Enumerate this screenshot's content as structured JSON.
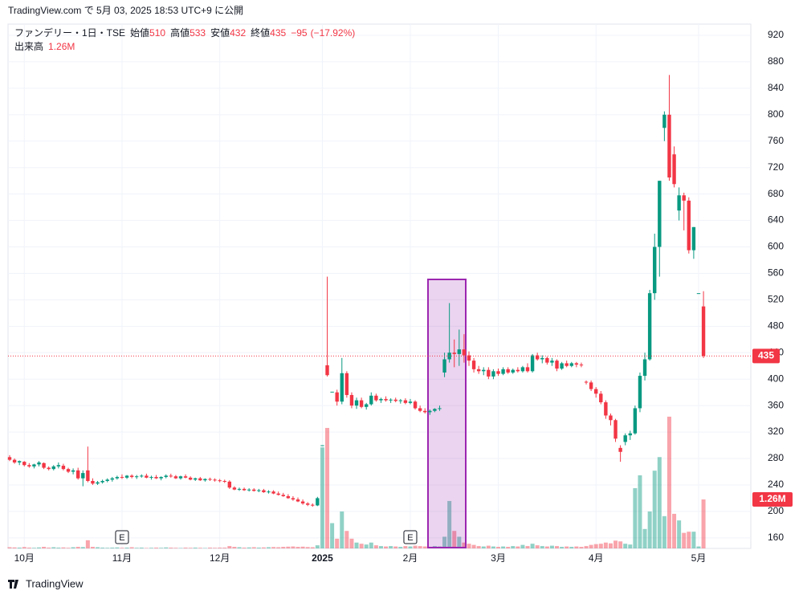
{
  "header": {
    "published": "TradingView.com で 5月 03, 2025 18:53 UTC+9 に公開"
  },
  "footer": {
    "logo": "TradingView"
  },
  "chart_data": {
    "type": "candlestick",
    "symbol": "ファンデリー・1日・TSE",
    "legend_labels": {
      "open": "始値",
      "high": "高値",
      "low": "安値",
      "close": "終値",
      "volume": "出来高"
    },
    "change": {
      "value": -95,
      "label": "−95"
    },
    "change_pct": {
      "value": -17.92,
      "label": "(−17.92%)"
    },
    "up_color": "#089981",
    "down_color": "#f23645",
    "ylim": [
      144,
      937
    ],
    "yticks": [
      160,
      200,
      240,
      280,
      320,
      360,
      400,
      440,
      480,
      520,
      560,
      600,
      640,
      680,
      720,
      760,
      800,
      840,
      880,
      920
    ],
    "xticks": [
      {
        "value": 3,
        "label": "10月"
      },
      {
        "value": 23,
        "label": "11月"
      },
      {
        "value": 43,
        "label": "12月"
      },
      {
        "value": 64,
        "label": "2025"
      },
      {
        "value": 82,
        "label": "2月"
      },
      {
        "value": 100,
        "label": "3月"
      },
      {
        "value": 120,
        "label": "4月"
      },
      {
        "value": 141,
        "label": "5月"
      }
    ],
    "events": [
      {
        "value": 23,
        "label": "E"
      },
      {
        "value": 82,
        "label": "E"
      }
    ],
    "candles": [
      [
        282,
        285,
        276,
        278
      ],
      [
        278,
        280,
        272,
        274
      ],
      [
        274,
        277,
        270,
        276
      ],
      [
        275,
        276,
        268,
        270
      ],
      [
        270,
        273,
        266,
        268
      ],
      [
        268,
        272,
        265,
        271
      ],
      [
        271,
        276,
        268,
        274
      ],
      [
        273,
        274,
        264,
        266
      ],
      [
        266,
        268,
        262,
        264
      ],
      [
        264,
        270,
        262,
        268
      ],
      [
        268,
        274,
        265,
        270
      ],
      [
        269,
        272,
        262,
        264
      ],
      [
        264,
        266,
        258,
        260
      ],
      [
        260,
        265,
        256,
        262
      ],
      [
        262,
        266,
        248,
        250
      ],
      [
        250,
        262,
        238,
        258
      ],
      [
        262,
        298,
        244,
        246
      ],
      [
        246,
        250,
        240,
        242
      ],
      [
        242,
        246,
        240,
        244
      ],
      [
        244,
        248,
        242,
        246
      ],
      [
        246,
        250,
        244,
        248
      ],
      [
        248,
        252,
        245,
        250
      ],
      [
        250,
        254,
        248,
        252
      ],
      [
        252,
        256,
        249,
        251
      ],
      [
        251,
        255,
        249,
        254
      ],
      [
        254,
        256,
        250,
        252
      ],
      [
        252,
        255,
        249,
        253
      ],
      [
        253,
        256,
        251,
        254
      ],
      [
        254,
        257,
        250,
        251
      ],
      [
        251,
        254,
        248,
        252
      ],
      [
        252,
        255,
        249,
        250
      ],
      [
        250,
        253,
        247,
        252
      ],
      [
        252,
        256,
        250,
        254
      ],
      [
        254,
        257,
        251,
        253
      ],
      [
        253,
        255,
        249,
        250
      ],
      [
        250,
        254,
        248,
        253
      ],
      [
        253,
        256,
        250,
        251
      ],
      [
        251,
        253,
        247,
        248
      ],
      [
        248,
        251,
        246,
        250
      ],
      [
        250,
        252,
        246,
        247
      ],
      [
        247,
        250,
        245,
        249
      ],
      [
        249,
        251,
        246,
        248
      ],
      [
        248,
        250,
        245,
        247
      ],
      [
        247,
        249,
        244,
        246
      ],
      [
        246,
        248,
        243,
        245
      ],
      [
        245,
        247,
        234,
        236
      ],
      [
        236,
        238,
        232,
        233
      ],
      [
        233,
        236,
        231,
        234
      ],
      [
        234,
        236,
        231,
        232
      ],
      [
        232,
        235,
        230,
        233
      ],
      [
        233,
        235,
        230,
        231
      ],
      [
        231,
        234,
        229,
        232
      ],
      [
        232,
        234,
        228,
        229
      ],
      [
        229,
        232,
        227,
        230
      ],
      [
        230,
        232,
        226,
        227
      ],
      [
        227,
        230,
        224,
        225
      ],
      [
        225,
        228,
        222,
        223
      ],
      [
        223,
        226,
        219,
        220
      ],
      [
        220,
        223,
        216,
        218
      ],
      [
        218,
        221,
        214,
        215
      ],
      [
        215,
        218,
        210,
        212
      ],
      [
        212,
        214,
        208,
        210
      ],
      [
        210,
        212,
        207,
        209
      ],
      [
        209,
        222,
        208,
        220
      ],
      [
        300,
        300,
        300,
        300
      ],
      [
        421,
        555,
        404,
        406
      ],
      [
        381,
        381,
        381,
        381
      ],
      [
        380,
        384,
        360,
        366
      ],
      [
        366,
        432,
        362,
        409
      ],
      [
        409,
        412,
        372,
        376
      ],
      [
        376,
        380,
        356,
        360
      ],
      [
        360,
        372,
        355,
        368
      ],
      [
        368,
        372,
        356,
        358
      ],
      [
        358,
        364,
        354,
        362
      ],
      [
        362,
        380,
        360,
        375
      ],
      [
        375,
        378,
        366,
        368
      ],
      [
        368,
        372,
        364,
        370
      ],
      [
        370,
        374,
        366,
        368
      ],
      [
        368,
        371,
        364,
        369
      ],
      [
        369,
        372,
        365,
        367
      ],
      [
        367,
        370,
        363,
        368
      ],
      [
        368,
        371,
        362,
        364
      ],
      [
        364,
        370,
        362,
        366
      ],
      [
        366,
        368,
        354,
        356
      ],
      [
        356,
        360,
        350,
        352
      ],
      [
        352,
        356,
        348,
        350
      ],
      [
        350,
        354,
        346,
        352
      ],
      [
        352,
        356,
        350,
        355
      ],
      [
        355,
        360,
        352,
        356
      ],
      [
        410,
        440,
        403,
        430
      ],
      [
        430,
        515,
        425,
        440
      ],
      [
        440,
        460,
        418,
        438
      ],
      [
        438,
        475,
        420,
        445
      ],
      [
        445,
        468,
        425,
        436
      ],
      [
        436,
        442,
        420,
        428
      ],
      [
        428,
        432,
        410,
        415
      ],
      [
        415,
        420,
        408,
        412
      ],
      [
        412,
        418,
        406,
        414
      ],
      [
        414,
        418,
        400,
        404
      ],
      [
        404,
        415,
        400,
        412
      ],
      [
        412,
        416,
        405,
        408
      ],
      [
        408,
        418,
        406,
        415
      ],
      [
        415,
        418,
        408,
        410
      ],
      [
        410,
        416,
        408,
        414
      ],
      [
        414,
        418,
        410,
        412
      ],
      [
        412,
        420,
        410,
        418
      ],
      [
        418,
        424,
        410,
        412
      ],
      [
        412,
        438,
        410,
        436
      ],
      [
        436,
        440,
        428,
        430
      ],
      [
        430,
        436,
        424,
        432
      ],
      [
        432,
        434,
        422,
        425
      ],
      [
        425,
        432,
        420,
        428
      ],
      [
        428,
        430,
        412,
        416
      ],
      [
        416,
        426,
        414,
        424
      ],
      [
        424,
        428,
        418,
        420
      ],
      [
        420,
        426,
        418,
        424
      ],
      [
        424,
        426,
        418,
        422
      ],
      [
        422,
        425,
        418,
        421
      ],
      [
        396,
        398,
        392,
        395
      ],
      [
        395,
        398,
        382,
        385
      ],
      [
        385,
        388,
        372,
        378
      ],
      [
        378,
        382,
        362,
        365
      ],
      [
        365,
        368,
        340,
        345
      ],
      [
        345,
        348,
        330,
        338
      ],
      [
        338,
        340,
        305,
        310
      ],
      [
        296,
        300,
        275,
        290
      ],
      [
        305,
        318,
        300,
        315
      ],
      [
        315,
        322,
        308,
        318
      ],
      [
        318,
        360,
        316,
        356
      ],
      [
        356,
        410,
        350,
        405
      ],
      [
        405,
        440,
        398,
        430
      ],
      [
        430,
        535,
        428,
        530
      ],
      [
        530,
        620,
        520,
        600
      ],
      [
        600,
        700,
        555,
        700
      ],
      [
        780,
        805,
        760,
        800
      ],
      [
        800,
        860,
        700,
        705
      ],
      [
        740,
        752,
        690,
        695
      ],
      [
        655,
        690,
        640,
        678
      ],
      [
        678,
        682,
        625,
        670
      ],
      [
        670,
        675,
        590,
        595
      ],
      [
        595,
        630,
        582,
        630
      ],
      [
        530,
        530,
        530,
        530
      ],
      [
        510,
        533,
        432,
        435
      ]
    ],
    "volume": [
      30000,
      25000,
      20000,
      35000,
      20000,
      15000,
      25000,
      40000,
      20000,
      30000,
      20000,
      25000,
      15000,
      30000,
      40000,
      35000,
      210000,
      40000,
      30000,
      20000,
      15000,
      20000,
      25000,
      15000,
      20000,
      30000,
      15000,
      20000,
      10000,
      15000,
      20000,
      15000,
      25000,
      20000,
      15000,
      10000,
      20000,
      15000,
      20000,
      15000,
      10000,
      20000,
      15000,
      20000,
      20000,
      60000,
      40000,
      30000,
      20000,
      25000,
      30000,
      20000,
      25000,
      30000,
      35000,
      30000,
      40000,
      45000,
      50000,
      40000,
      45000,
      35000,
      30000,
      80000,
      2600000,
      3100000,
      650000,
      250000,
      950000,
      450000,
      250000,
      150000,
      120000,
      100000,
      150000,
      80000,
      60000,
      50000,
      60000,
      50000,
      40000,
      60000,
      50000,
      70000,
      60000,
      50000,
      40000,
      60000,
      50000,
      300000,
      1220000,
      450000,
      300000,
      150000,
      120000,
      90000,
      60000,
      50000,
      70000,
      50000,
      40000,
      50000,
      40000,
      60000,
      50000,
      90000,
      60000,
      120000,
      80000,
      60000,
      50000,
      70000,
      60000,
      40000,
      50000,
      40000,
      50000,
      40000,
      60000,
      90000,
      110000,
      120000,
      150000,
      130000,
      200000,
      180000,
      120000,
      100000,
      1550000,
      1880000,
      500000,
      950000,
      2000000,
      2350000,
      830000,
      3390000,
      890000,
      720000,
      400000,
      430000,
      430000,
      50000,
      1260000
    ],
    "volume_last_label": "1.26M"
  }
}
